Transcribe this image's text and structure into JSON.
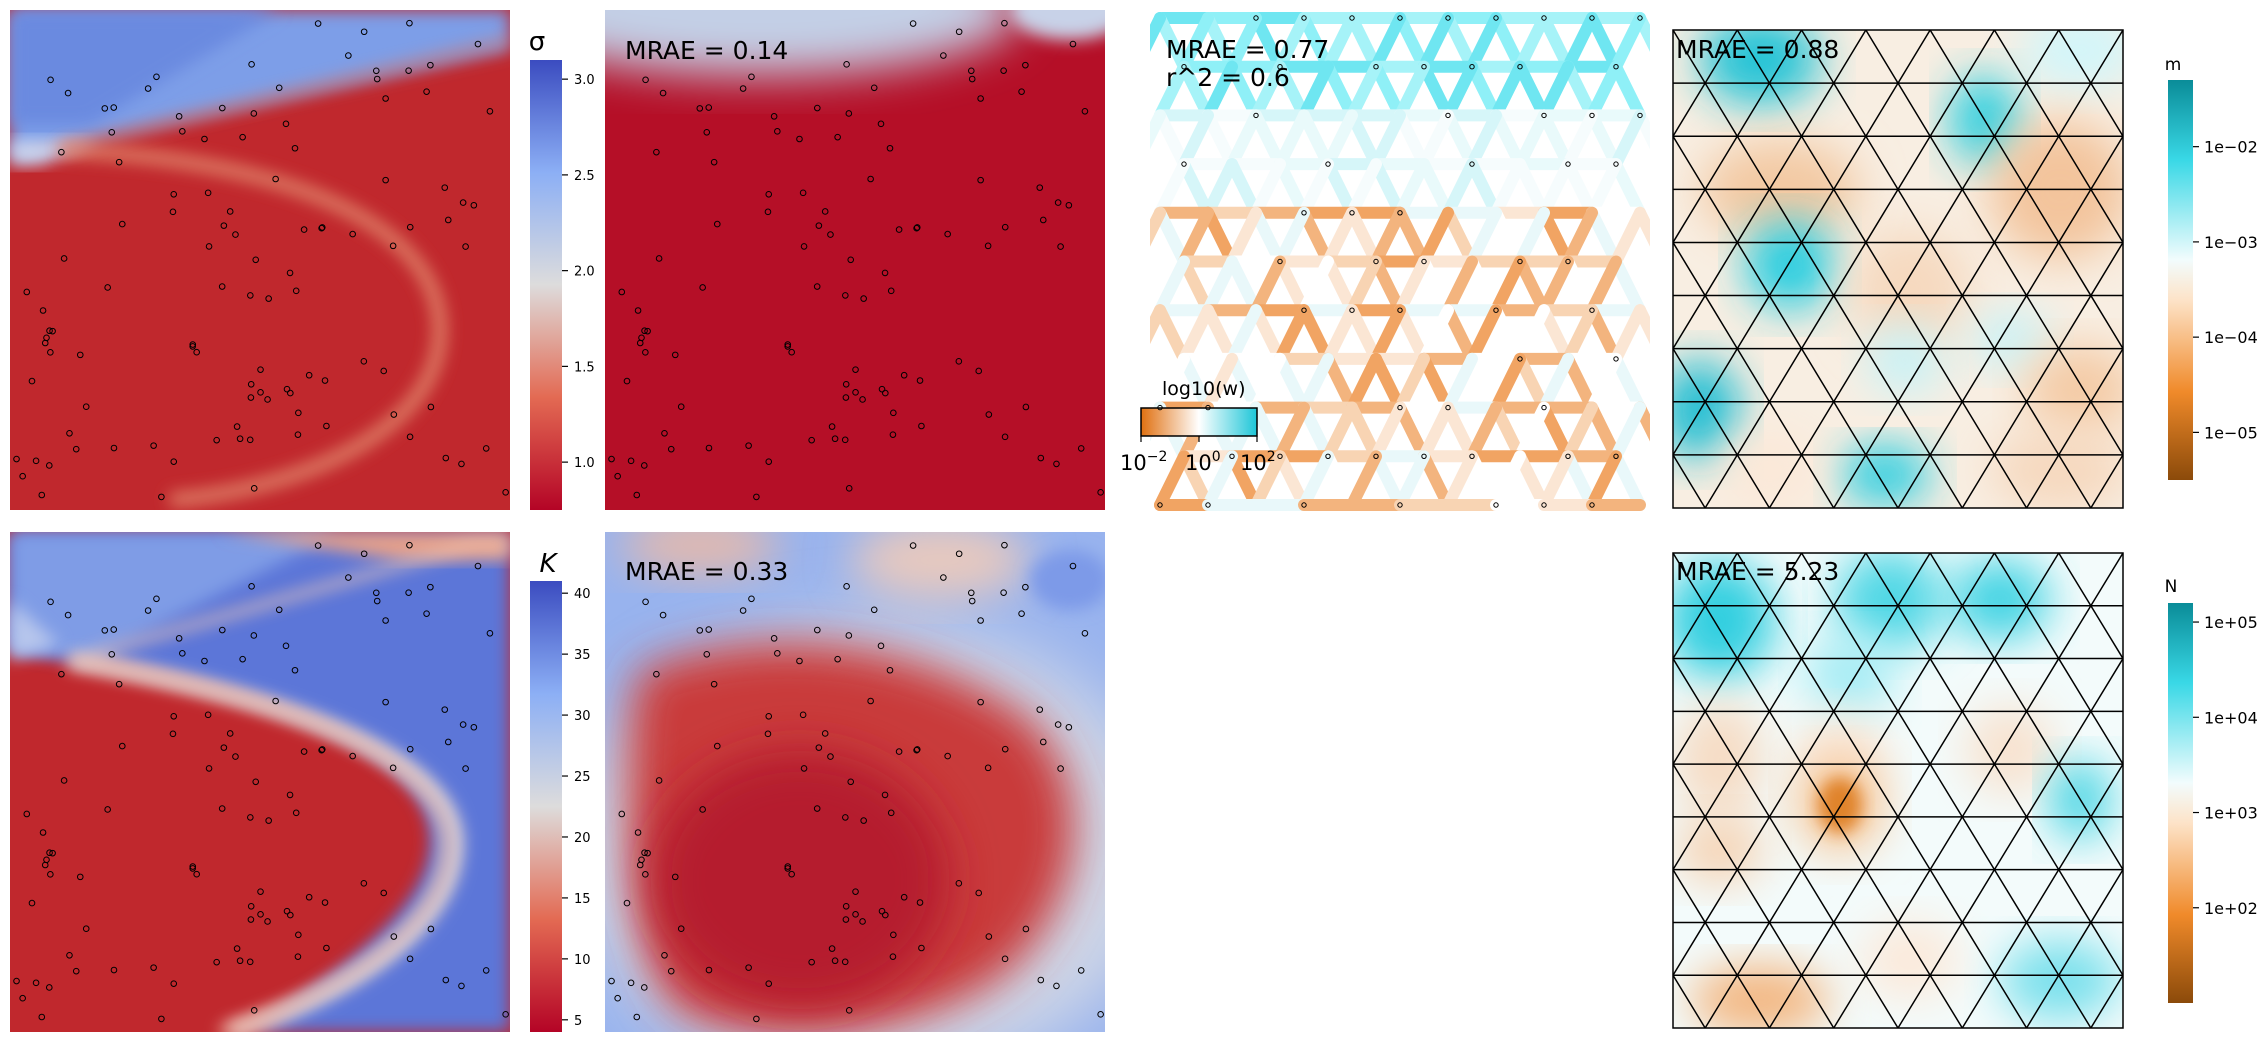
{
  "chart_data": [
    {
      "type": "heatmap",
      "panel": "sigma-true",
      "colorbar": {
        "label": "σ",
        "ticks": [
          1.0,
          1.5,
          2.0,
          2.5,
          3.0
        ],
        "tick_labels": [
          "1.0",
          "1.5",
          "2.0",
          "2.5",
          "3.0"
        ],
        "range": [
          0.75,
          3.1
        ],
        "cmap": "coolwarm-reversed"
      }
    },
    {
      "type": "heatmap",
      "panel": "sigma-estimate",
      "annotation": "MRAE = 0.14"
    },
    {
      "type": "heatmap",
      "panel": "edge-weights",
      "annotations": [
        "MRAE = 0.77",
        "r^2 = 0.6"
      ],
      "legend": {
        "title": "log10(w)",
        "tick_labels": [
          "10",
          "10",
          "10"
        ],
        "tick_exponents": [
          "−2",
          "0",
          "2"
        ]
      }
    },
    {
      "type": "heatmap",
      "panel": "m-estimate",
      "annotation": "MRAE = 0.88",
      "colorbar": {
        "label": "m",
        "tick_labels": [
          "1e−02",
          "1e−03",
          "1e−04",
          "1e−05"
        ],
        "ticks_log10": [
          -2,
          -3,
          -4,
          -5
        ],
        "range_log10": [
          -5.5,
          -1.3
        ],
        "cmap": "BrBG-like (brown to teal)"
      }
    },
    {
      "type": "heatmap",
      "panel": "K-true",
      "colorbar": {
        "label": "K",
        "ticks": [
          5,
          10,
          15,
          20,
          25,
          30,
          35,
          40
        ],
        "tick_labels": [
          "5",
          "10",
          "15",
          "20",
          "25",
          "30",
          "35",
          "40"
        ],
        "range": [
          4,
          41
        ],
        "cmap": "coolwarm-reversed"
      }
    },
    {
      "type": "heatmap",
      "panel": "K-estimate",
      "annotation": "MRAE = 0.33"
    },
    {
      "type": "heatmap",
      "panel": "N-estimate",
      "annotation": "MRAE = 5.23",
      "colorbar": {
        "label": "N",
        "tick_labels": [
          "1e+05",
          "1e+04",
          "1e+03",
          "1e+02"
        ],
        "ticks_log10": [
          5,
          4,
          3,
          2
        ],
        "range_log10": [
          1.0,
          5.2
        ],
        "cmap": "BrBG-like (brown to teal)"
      }
    }
  ],
  "colors": {
    "red": "#b40426",
    "blue": "#3b4cc0",
    "pale": "#dddcdc",
    "teal": "#2bd4e0",
    "orange": "#f28c28",
    "brown": "#8b4a0a"
  }
}
